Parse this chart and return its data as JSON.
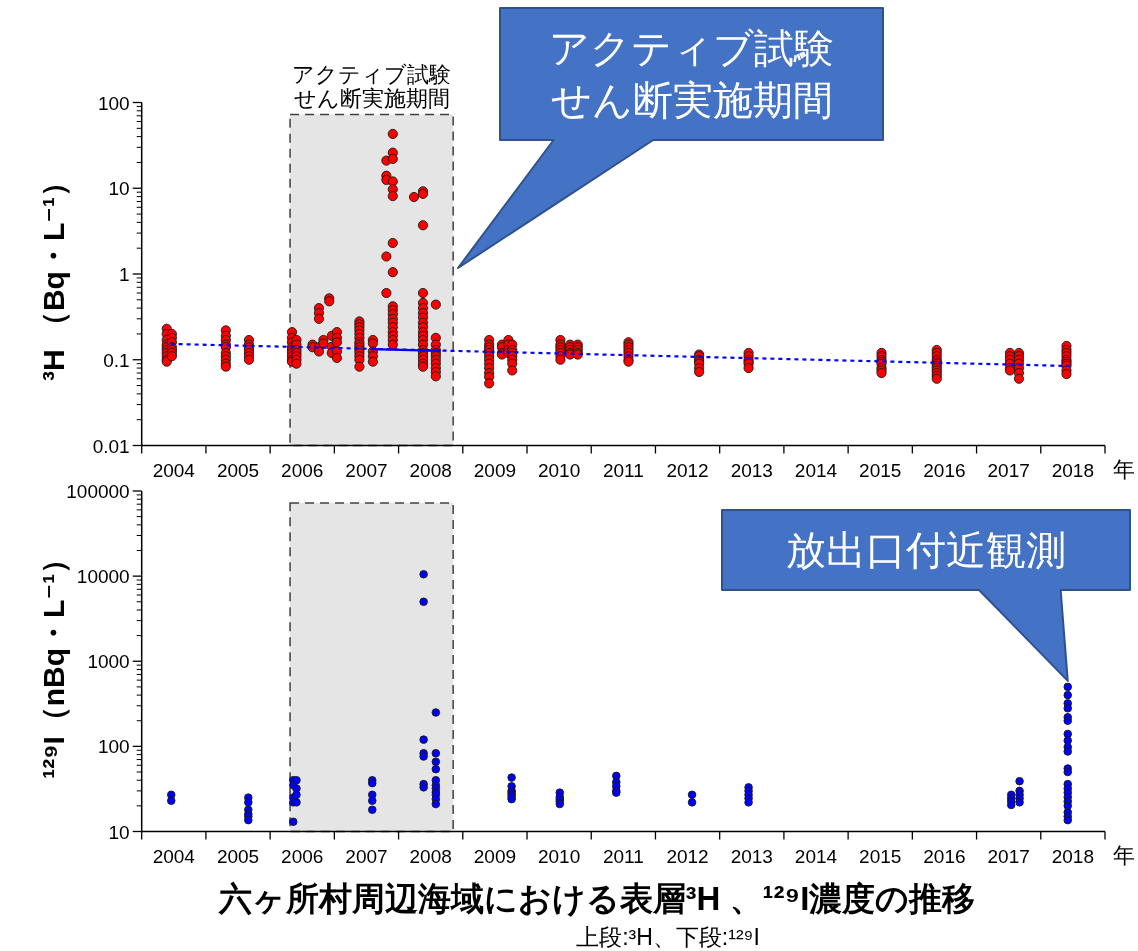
{
  "chart_data": [
    {
      "type": "scatter",
      "marker": "circle",
      "log": "y",
      "xlim": [
        2004,
        2019
      ],
      "ylim": [
        0.01,
        100
      ],
      "yticks": [
        0.01,
        0.1,
        1,
        10,
        100
      ],
      "xticks": [
        {
          "value": 2004,
          "label": null
        },
        {
          "value": 2005,
          "label": null
        },
        {
          "value": 2006,
          "label": null
        },
        {
          "value": 2007,
          "label": null
        },
        {
          "value": 2008,
          "label": null
        },
        {
          "value": 2009,
          "label": null
        },
        {
          "value": 2010,
          "label": null
        },
        {
          "value": 2011,
          "label": null
        },
        {
          "value": 2012,
          "label": null
        },
        {
          "value": 2013,
          "label": null
        },
        {
          "value": 2014,
          "label": null
        },
        {
          "value": 2015,
          "label": null
        },
        {
          "value": 2016,
          "label": null
        },
        {
          "value": 2017,
          "label": null
        },
        {
          "value": 2018,
          "label": null
        },
        {
          "value": 2019,
          "label": null
        },
        {
          "value": 2004.5,
          "label": "2004"
        },
        {
          "value": 2005.5,
          "label": "2005"
        },
        {
          "value": 2006.5,
          "label": "2006"
        },
        {
          "value": 2007.5,
          "label": "2007"
        },
        {
          "value": 2008.5,
          "label": "2008"
        },
        {
          "value": 2009.5,
          "label": "2009"
        },
        {
          "value": 2010.5,
          "label": "2010"
        },
        {
          "value": 2011.5,
          "label": "2011"
        },
        {
          "value": 2012.5,
          "label": "2012"
        },
        {
          "value": 2013.5,
          "label": "2013"
        },
        {
          "value": 2014.5,
          "label": "2014"
        },
        {
          "value": 2015.5,
          "label": "2015"
        },
        {
          "value": 2016.5,
          "label": "2016"
        },
        {
          "value": 2017.5,
          "label": "2017"
        },
        {
          "value": 2018.5,
          "label": "2018"
        }
      ],
      "xlabel": "年",
      "ylabel": "³H （Bq・L⁻¹）",
      "bands": [
        {
          "axis": "x",
          "from": 2006.31,
          "to": 2008.85,
          "color": "#e5e5e5",
          "label": "アクティブ試験せん断実施期間"
        }
      ],
      "annotations": [
        "アクティブ試験せん断実施期間"
      ],
      "series": [
        {
          "type": "scatter",
          "color": "#ff0000",
          "x": [
            2004.39,
            2004.39,
            2004.39,
            2004.39,
            2004.39,
            2004.39,
            2004.39,
            2004.39,
            2004.39,
            2004.39,
            2004.47,
            2004.47,
            2004.47,
            2004.47,
            2004.47,
            2004.47,
            2004.47,
            2005.31,
            2005.31,
            2005.31,
            2005.31,
            2005.31,
            2005.31,
            2005.31,
            2005.31,
            2005.31,
            2005.31,
            2005.67,
            2005.67,
            2005.67,
            2005.67,
            2005.67,
            2005.67,
            2005.67,
            2006.34,
            2006.34,
            2006.34,
            2006.34,
            2006.34,
            2006.34,
            2006.34,
            2006.34,
            2006.34,
            2006.41,
            2006.41,
            2006.41,
            2006.41,
            2006.41,
            2006.41,
            2006.41,
            2006.66,
            2006.66,
            2006.76,
            2006.76,
            2006.76,
            2006.76,
            2006.76,
            2006.83,
            2006.83,
            2006.92,
            2006.92,
            2006.96,
            2006.96,
            2006.96,
            2007.04,
            2007.04,
            2007.04,
            2007.04,
            2007.04,
            2007.39,
            2007.39,
            2007.39,
            2007.39,
            2007.39,
            2007.39,
            2007.39,
            2007.39,
            2007.39,
            2007.39,
            2007.39,
            2007.39,
            2007.39,
            2007.39,
            2007.6,
            2007.6,
            2007.6,
            2007.6,
            2007.6,
            2007.81,
            2007.81,
            2007.81,
            2007.81,
            2007.81,
            2007.91,
            2007.91,
            2007.91,
            2007.91,
            2007.91,
            2007.91,
            2007.91,
            2007.91,
            2007.91,
            2007.91,
            2007.91,
            2007.91,
            2007.91,
            2007.91,
            2007.91,
            2007.91,
            2007.91,
            2007.91,
            2008.24,
            2008.38,
            2008.38,
            2008.38,
            2008.38,
            2008.38,
            2008.38,
            2008.38,
            2008.38,
            2008.38,
            2008.38,
            2008.38,
            2008.38,
            2008.38,
            2008.38,
            2008.38,
            2008.38,
            2008.38,
            2008.38,
            2008.38,
            2008.38,
            2008.58,
            2008.58,
            2008.58,
            2008.58,
            2008.58,
            2008.58,
            2008.58,
            2008.58,
            2008.58,
            2008.58,
            2008.58,
            2009.41,
            2009.41,
            2009.41,
            2009.41,
            2009.41,
            2009.41,
            2009.41,
            2009.41,
            2009.41,
            2009.41,
            2009.41,
            2009.41,
            2009.61,
            2009.61,
            2009.61,
            2009.61,
            2009.71,
            2009.71,
            2009.71,
            2009.71,
            2009.77,
            2009.77,
            2009.77,
            2009.77,
            2009.77,
            2009.77,
            2009.77,
            2010.52,
            2010.52,
            2010.52,
            2010.52,
            2010.52,
            2010.52,
            2010.52,
            2010.67,
            2010.67,
            2010.67,
            2010.67,
            2010.67,
            2010.79,
            2010.79,
            2010.79,
            2010.79,
            2010.79,
            2011.58,
            2011.58,
            2011.58,
            2011.58,
            2011.58,
            2011.58,
            2011.58,
            2011.58,
            2012.68,
            2012.68,
            2012.68,
            2012.68,
            2012.68,
            2012.68,
            2012.68,
            2013.45,
            2013.45,
            2013.45,
            2013.45,
            2013.45,
            2013.45,
            2015.52,
            2015.52,
            2015.52,
            2015.52,
            2015.52,
            2015.52,
            2015.52,
            2015.52,
            2016.38,
            2016.38,
            2016.38,
            2016.38,
            2016.38,
            2016.38,
            2016.38,
            2016.38,
            2016.38,
            2016.38,
            2016.38,
            2016.38,
            2017.52,
            2017.52,
            2017.52,
            2017.52,
            2017.52,
            2017.52,
            2017.66,
            2017.66,
            2017.66,
            2017.66,
            2017.66,
            2017.66,
            2017.66,
            2018.4,
            2018.4,
            2018.4,
            2018.4,
            2018.4,
            2018.4,
            2018.4,
            2018.4,
            2018.4,
            2018.4
          ],
          "values": [
            0.23,
            0.2,
            0.17,
            0.15,
            0.14,
            0.13,
            0.12,
            0.11,
            0.1,
            0.095,
            0.2,
            0.18,
            0.16,
            0.14,
            0.13,
            0.12,
            0.11,
            0.22,
            0.19,
            0.17,
            0.15,
            0.14,
            0.12,
            0.11,
            0.1,
            0.09,
            0.083,
            0.17,
            0.15,
            0.14,
            0.13,
            0.12,
            0.11,
            0.1,
            0.21,
            0.18,
            0.16,
            0.14,
            0.13,
            0.12,
            0.11,
            0.1,
            0.095,
            0.17,
            0.15,
            0.13,
            0.12,
            0.11,
            0.1,
            0.09,
            0.15,
            0.14,
            0.4,
            0.35,
            0.3,
            0.14,
            0.125,
            0.17,
            0.155,
            0.52,
            0.48,
            0.19,
            0.142,
            0.12,
            0.21,
            0.18,
            0.16,
            0.125,
            0.105,
            0.28,
            0.26,
            0.24,
            0.22,
            0.2,
            0.18,
            0.16,
            0.15,
            0.14,
            0.13,
            0.12,
            0.11,
            0.1,
            0.083,
            0.17,
            0.155,
            0.125,
            0.11,
            0.095,
            21,
            14,
            12.5,
            1.6,
            0.6,
            43,
            26,
            22,
            12,
            9.7,
            8.1,
            2.3,
            1.05,
            0.42,
            0.38,
            0.34,
            0.3,
            0.27,
            0.24,
            0.21,
            0.19,
            0.17,
            0.15,
            7.9,
            9.2,
            8.6,
            3.7,
            0.6,
            0.46,
            0.4,
            0.35,
            0.31,
            0.27,
            0.24,
            0.21,
            0.19,
            0.17,
            0.15,
            0.13,
            0.12,
            0.11,
            0.1,
            0.09,
            0.083,
            0.44,
            0.18,
            0.15,
            0.13,
            0.12,
            0.11,
            0.1,
            0.09,
            0.08,
            0.072,
            0.064,
            0.17,
            0.15,
            0.14,
            0.13,
            0.12,
            0.11,
            0.1,
            0.09,
            0.08,
            0.07,
            0.063,
            0.053,
            0.15,
            0.14,
            0.12,
            0.115,
            0.17,
            0.15,
            0.13,
            0.12,
            0.15,
            0.13,
            0.12,
            0.11,
            0.1,
            0.09,
            0.075,
            0.17,
            0.15,
            0.14,
            0.13,
            0.12,
            0.11,
            0.1,
            0.15,
            0.14,
            0.13,
            0.12,
            0.115,
            0.15,
            0.14,
            0.13,
            0.12,
            0.115,
            0.16,
            0.15,
            0.14,
            0.13,
            0.12,
            0.11,
            0.1,
            0.095,
            0.115,
            0.11,
            0.1,
            0.095,
            0.09,
            0.08,
            0.072,
            0.12,
            0.11,
            0.1,
            0.095,
            0.09,
            0.08,
            0.12,
            0.11,
            0.1,
            0.095,
            0.09,
            0.08,
            0.075,
            0.07,
            0.13,
            0.12,
            0.11,
            0.1,
            0.095,
            0.09,
            0.085,
            0.08,
            0.075,
            0.07,
            0.065,
            0.06,
            0.12,
            0.11,
            0.1,
            0.09,
            0.08,
            0.075,
            0.12,
            0.11,
            0.1,
            0.09,
            0.08,
            0.07,
            0.06,
            0.145,
            0.13,
            0.12,
            0.11,
            0.1,
            0.095,
            0.09,
            0.085,
            0.075,
            0.068
          ]
        },
        {
          "type": "line",
          "color": "#0000ff",
          "marker": "none",
          "line_style": "dotted",
          "x": [
            2004.45,
            2018.45
          ],
          "values": [
            0.153,
            0.0845
          ]
        },
        {
          "type": "line",
          "color": "#0000ff",
          "marker": "none",
          "line_style": "solid",
          "x": [
            2007.57,
            2008.65
          ],
          "values": [
            0.133,
            0.127
          ]
        }
      ]
    },
    {
      "type": "scatter",
      "marker": "circle",
      "log": "y",
      "xlim": [
        2004,
        2019
      ],
      "ylim": [
        10,
        100000
      ],
      "yticks": [
        10,
        100,
        1000,
        10000,
        100000
      ],
      "xticks": [
        {
          "value": 2004,
          "label": null
        },
        {
          "value": 2005,
          "label": null
        },
        {
          "value": 2006,
          "label": null
        },
        {
          "value": 2007,
          "label": null
        },
        {
          "value": 2008,
          "label": null
        },
        {
          "value": 2009,
          "label": null
        },
        {
          "value": 2010,
          "label": null
        },
        {
          "value": 2011,
          "label": null
        },
        {
          "value": 2012,
          "label": null
        },
        {
          "value": 2013,
          "label": null
        },
        {
          "value": 2014,
          "label": null
        },
        {
          "value": 2015,
          "label": null
        },
        {
          "value": 2016,
          "label": null
        },
        {
          "value": 2017,
          "label": null
        },
        {
          "value": 2018,
          "label": null
        },
        {
          "value": 2019,
          "label": null
        },
        {
          "value": 2004.5,
          "label": "2004"
        },
        {
          "value": 2005.5,
          "label": "2005"
        },
        {
          "value": 2006.5,
          "label": "2006"
        },
        {
          "value": 2007.5,
          "label": "2007"
        },
        {
          "value": 2008.5,
          "label": "2008"
        },
        {
          "value": 2009.5,
          "label": "2009"
        },
        {
          "value": 2010.5,
          "label": "2010"
        },
        {
          "value": 2011.5,
          "label": "2011"
        },
        {
          "value": 2012.5,
          "label": "2012"
        },
        {
          "value": 2013.5,
          "label": "2013"
        },
        {
          "value": 2014.5,
          "label": "2014"
        },
        {
          "value": 2015.5,
          "label": "2015"
        },
        {
          "value": 2016.5,
          "label": "2016"
        },
        {
          "value": 2017.5,
          "label": "2017"
        },
        {
          "value": 2018.5,
          "label": "2018"
        }
      ],
      "xlabel": "年",
      "ylabel": "¹²⁹I（nBq・L⁻¹）",
      "title": "六ヶ所村周辺海域における表層³H 、¹²⁹I濃度の推移",
      "subtitle": "上段:³H、下段:¹²⁹I",
      "bands": [
        {
          "axis": "x",
          "from": 2006.31,
          "to": 2008.85,
          "color": "#e5e5e5"
        }
      ],
      "annotations": [
        {
          "text": "放出口付近観測",
          "x": 2018.42,
          "y": 500
        }
      ],
      "series": [
        {
          "type": "scatter",
          "color": "#0000ff",
          "x": [
            2004.46,
            2004.46,
            2005.66,
            2005.66,
            2005.66,
            2005.66,
            2005.66,
            2005.66,
            2006.36,
            2006.36,
            2006.36,
            2006.36,
            2006.36,
            2006.41,
            2006.41,
            2006.41,
            2006.41,
            2007.59,
            2007.59,
            2007.59,
            2007.59,
            2007.59,
            2008.39,
            2008.39,
            2008.39,
            2008.39,
            2008.39,
            2008.39,
            2008.39,
            2008.58,
            2008.58,
            2008.58,
            2008.58,
            2008.58,
            2008.58,
            2008.58,
            2008.58,
            2008.58,
            2008.58,
            2008.58,
            2009.76,
            2009.76,
            2009.76,
            2009.76,
            2009.76,
            2009.76,
            2009.76,
            2010.51,
            2010.51,
            2010.51,
            2010.51,
            2010.51,
            2011.39,
            2011.39,
            2011.39,
            2011.39,
            2011.39,
            2012.57,
            2012.57,
            2013.45,
            2013.45,
            2013.45,
            2013.45,
            2013.45,
            2017.54,
            2017.54,
            2017.54,
            2017.54,
            2017.67,
            2017.67,
            2017.67,
            2017.67,
            2017.67,
            2018.42,
            2018.42,
            2018.42,
            2018.42,
            2018.42,
            2018.42,
            2018.42,
            2018.42,
            2018.42,
            2018.42,
            2018.42,
            2018.42,
            2018.42,
            2018.42,
            2018.42,
            2018.42,
            2018.42,
            2018.42,
            2018.42,
            2018.42,
            2018.42
          ],
          "values": [
            27,
            23,
            25,
            22,
            18,
            16,
            15,
            13.6,
            40,
            35,
            25,
            22,
            13,
            40,
            32,
            27,
            22,
            40,
            37,
            27,
            23,
            18,
            10500,
            5000,
            120,
            83,
            76,
            36,
            33,
            250,
            83,
            66,
            54,
            40,
            35,
            32,
            29,
            27,
            24,
            21,
            43,
            34,
            30,
            28.6,
            27,
            25.4,
            24,
            28.6,
            25.4,
            24,
            22.6,
            21,
            45,
            38,
            34,
            30,
            28.6,
            27,
            22,
            33,
            30,
            27,
            24.5,
            22,
            27,
            24.5,
            22.6,
            20.5,
            39,
            30,
            27,
            24.5,
            22,
            500,
            400,
            320,
            280,
            220,
            200,
            140,
            117,
            98,
            87,
            55,
            50,
            36,
            32,
            28.6,
            25.4,
            22.6,
            20,
            16.8,
            15,
            13.6
          ]
        }
      ]
    }
  ]
}
